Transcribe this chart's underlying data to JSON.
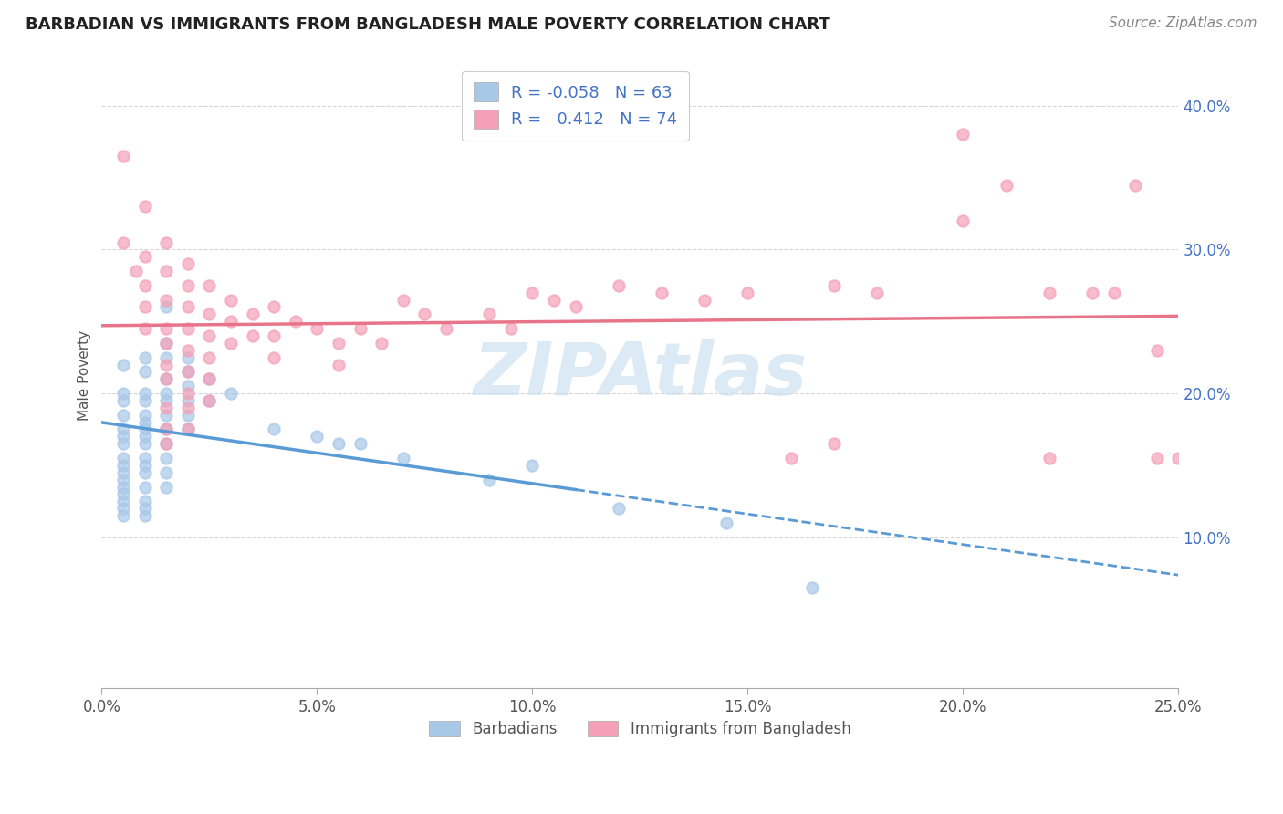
{
  "title": "BARBADIAN VS IMMIGRANTS FROM BANGLADESH MALE POVERTY CORRELATION CHART",
  "source": "Source: ZipAtlas.com",
  "ylabel": "Male Poverty",
  "xlim": [
    0.0,
    0.25
  ],
  "ylim": [
    -0.005,
    0.43
  ],
  "xticks": [
    0.0,
    0.05,
    0.1,
    0.15,
    0.2,
    0.25
  ],
  "xtick_labels": [
    "0.0%",
    "",
    "",
    "",
    "",
    "25.0%"
  ],
  "yticks": [
    0.1,
    0.2,
    0.3,
    0.4
  ],
  "ytick_labels": [
    "10.0%",
    "20.0%",
    "30.0%",
    "40.0%"
  ],
  "barbadian_color": "#a8c8e8",
  "bangladesh_color": "#f4a0b8",
  "trend_blue_color": "#5b9bd5",
  "trend_pink_color": "#e8748a",
  "legend_r1": "R = -0.058",
  "legend_n1": "N = 63",
  "legend_r2": "R =  0.412",
  "legend_n2": "N = 74",
  "label1": "Barbadians",
  "label2": "Immigrants from Bangladesh",
  "watermark": "ZIPAtlas",
  "watermark_color": "#c5ddf0",
  "background_color": "#ffffff",
  "title_color": "#222222",
  "barbadian_scatter": [
    [
      0.005,
      0.22
    ],
    [
      0.005,
      0.2
    ],
    [
      0.005,
      0.195
    ],
    [
      0.005,
      0.185
    ],
    [
      0.005,
      0.175
    ],
    [
      0.005,
      0.17
    ],
    [
      0.005,
      0.165
    ],
    [
      0.005,
      0.155
    ],
    [
      0.005,
      0.15
    ],
    [
      0.005,
      0.145
    ],
    [
      0.005,
      0.14
    ],
    [
      0.005,
      0.135
    ],
    [
      0.005,
      0.13
    ],
    [
      0.005,
      0.125
    ],
    [
      0.005,
      0.12
    ],
    [
      0.005,
      0.115
    ],
    [
      0.01,
      0.225
    ],
    [
      0.01,
      0.215
    ],
    [
      0.01,
      0.2
    ],
    [
      0.01,
      0.195
    ],
    [
      0.01,
      0.185
    ],
    [
      0.01,
      0.18
    ],
    [
      0.01,
      0.175
    ],
    [
      0.01,
      0.17
    ],
    [
      0.01,
      0.165
    ],
    [
      0.01,
      0.155
    ],
    [
      0.01,
      0.15
    ],
    [
      0.01,
      0.145
    ],
    [
      0.01,
      0.135
    ],
    [
      0.01,
      0.125
    ],
    [
      0.01,
      0.12
    ],
    [
      0.01,
      0.115
    ],
    [
      0.015,
      0.26
    ],
    [
      0.015,
      0.235
    ],
    [
      0.015,
      0.225
    ],
    [
      0.015,
      0.21
    ],
    [
      0.015,
      0.2
    ],
    [
      0.015,
      0.195
    ],
    [
      0.015,
      0.185
    ],
    [
      0.015,
      0.175
    ],
    [
      0.015,
      0.165
    ],
    [
      0.015,
      0.155
    ],
    [
      0.015,
      0.145
    ],
    [
      0.015,
      0.135
    ],
    [
      0.02,
      0.225
    ],
    [
      0.02,
      0.215
    ],
    [
      0.02,
      0.205
    ],
    [
      0.02,
      0.195
    ],
    [
      0.02,
      0.185
    ],
    [
      0.02,
      0.175
    ],
    [
      0.025,
      0.21
    ],
    [
      0.025,
      0.195
    ],
    [
      0.03,
      0.2
    ],
    [
      0.04,
      0.175
    ],
    [
      0.05,
      0.17
    ],
    [
      0.055,
      0.165
    ],
    [
      0.06,
      0.165
    ],
    [
      0.07,
      0.155
    ],
    [
      0.09,
      0.14
    ],
    [
      0.1,
      0.15
    ],
    [
      0.12,
      0.12
    ],
    [
      0.145,
      0.11
    ],
    [
      0.165,
      0.065
    ]
  ],
  "bangladesh_scatter": [
    [
      0.005,
      0.365
    ],
    [
      0.005,
      0.305
    ],
    [
      0.008,
      0.285
    ],
    [
      0.01,
      0.33
    ],
    [
      0.01,
      0.295
    ],
    [
      0.01,
      0.275
    ],
    [
      0.01,
      0.26
    ],
    [
      0.01,
      0.245
    ],
    [
      0.015,
      0.305
    ],
    [
      0.015,
      0.285
    ],
    [
      0.015,
      0.265
    ],
    [
      0.015,
      0.245
    ],
    [
      0.015,
      0.235
    ],
    [
      0.015,
      0.22
    ],
    [
      0.015,
      0.21
    ],
    [
      0.015,
      0.19
    ],
    [
      0.015,
      0.175
    ],
    [
      0.015,
      0.165
    ],
    [
      0.02,
      0.29
    ],
    [
      0.02,
      0.275
    ],
    [
      0.02,
      0.26
    ],
    [
      0.02,
      0.245
    ],
    [
      0.02,
      0.23
    ],
    [
      0.02,
      0.215
    ],
    [
      0.02,
      0.2
    ],
    [
      0.02,
      0.19
    ],
    [
      0.02,
      0.175
    ],
    [
      0.025,
      0.275
    ],
    [
      0.025,
      0.255
    ],
    [
      0.025,
      0.24
    ],
    [
      0.025,
      0.225
    ],
    [
      0.025,
      0.21
    ],
    [
      0.025,
      0.195
    ],
    [
      0.03,
      0.265
    ],
    [
      0.03,
      0.25
    ],
    [
      0.03,
      0.235
    ],
    [
      0.035,
      0.255
    ],
    [
      0.035,
      0.24
    ],
    [
      0.04,
      0.26
    ],
    [
      0.04,
      0.24
    ],
    [
      0.04,
      0.225
    ],
    [
      0.045,
      0.25
    ],
    [
      0.05,
      0.245
    ],
    [
      0.055,
      0.235
    ],
    [
      0.055,
      0.22
    ],
    [
      0.06,
      0.245
    ],
    [
      0.065,
      0.235
    ],
    [
      0.07,
      0.265
    ],
    [
      0.075,
      0.255
    ],
    [
      0.08,
      0.245
    ],
    [
      0.09,
      0.255
    ],
    [
      0.095,
      0.245
    ],
    [
      0.1,
      0.27
    ],
    [
      0.105,
      0.265
    ],
    [
      0.11,
      0.26
    ],
    [
      0.12,
      0.275
    ],
    [
      0.13,
      0.27
    ],
    [
      0.14,
      0.265
    ],
    [
      0.15,
      0.27
    ],
    [
      0.16,
      0.155
    ],
    [
      0.17,
      0.165
    ],
    [
      0.17,
      0.275
    ],
    [
      0.18,
      0.27
    ],
    [
      0.2,
      0.38
    ],
    [
      0.2,
      0.32
    ],
    [
      0.21,
      0.345
    ],
    [
      0.22,
      0.27
    ],
    [
      0.22,
      0.155
    ],
    [
      0.23,
      0.27
    ],
    [
      0.235,
      0.27
    ],
    [
      0.24,
      0.345
    ],
    [
      0.245,
      0.155
    ],
    [
      0.245,
      0.23
    ],
    [
      0.25,
      0.155
    ]
  ]
}
